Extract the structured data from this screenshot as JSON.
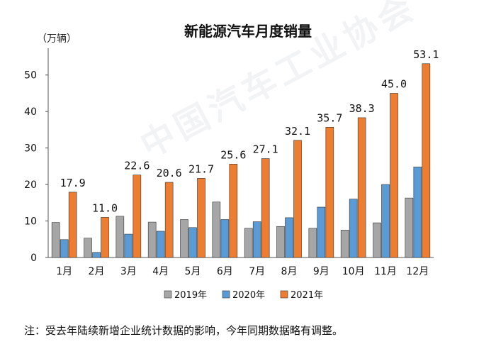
{
  "chart_data": {
    "type": "bar",
    "title": "新能源汽车月度销量",
    "ylabel": "（万辆）",
    "ylim": [
      0,
      55
    ],
    "yticks": [
      0,
      10,
      20,
      30,
      40,
      50
    ],
    "categories": [
      "1月",
      "2月",
      "3月",
      "4月",
      "5月",
      "6月",
      "7月",
      "8月",
      "9月",
      "10月",
      "11月",
      "12月"
    ],
    "series": [
      {
        "name": "2019年",
        "color": "#a6a6a6",
        "values": [
          9.6,
          5.3,
          11.3,
          9.7,
          10.4,
          15.2,
          8.0,
          8.5,
          8.0,
          7.5,
          9.5,
          16.3
        ]
      },
      {
        "name": "2020年",
        "color": "#5b9bd5",
        "values": [
          4.9,
          1.4,
          6.4,
          7.2,
          8.2,
          10.4,
          9.8,
          10.9,
          13.8,
          16.0,
          20.0,
          24.8
        ]
      },
      {
        "name": "2021年",
        "color": "#ed7d31",
        "values": [
          17.9,
          11.0,
          22.6,
          20.6,
          21.7,
          25.6,
          27.1,
          32.1,
          35.7,
          38.3,
          45.0,
          53.1
        ],
        "labels": [
          "17.9",
          "11.0",
          "22.6",
          "20.6",
          "21.7",
          "25.6",
          "27.1",
          "32.1",
          "35.7",
          "38.3",
          "45.0",
          "53.1"
        ]
      }
    ],
    "legend_position": "bottom",
    "grid": false
  },
  "note": "注：受去年陆续新增企业统计数据的影响，今年同期数据略有调整。"
}
